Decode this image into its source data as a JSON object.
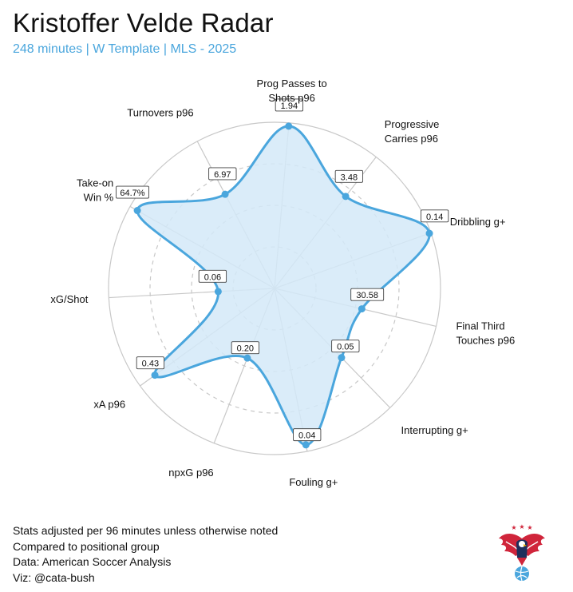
{
  "header": {
    "title": "Kristoffer Velde Radar",
    "subtitle": "248 minutes | W Template | MLS - 2025"
  },
  "footer": {
    "lines": [
      "Stats adjusted per 96 minutes unless otherwise noted",
      "Compared to positional group",
      "Data: American Soccer Analysis",
      "Viz: @cata-bush"
    ]
  },
  "colors": {
    "accent": "#4aa6dd",
    "fill": "#d4e9f8",
    "grid": "#c8c8c8",
    "logo_red": "#d0253b",
    "logo_navy": "#1f2f5c",
    "logo_blue": "#4aa6dd"
  },
  "chart_data": {
    "type": "radar",
    "title": "Kristoffer Velde Radar",
    "subtitle": "248 minutes | W Template | MLS - 2025",
    "scale": "percentile rank within positional group (0-100), estimated from radius",
    "rings": 4,
    "grid_inner_dashed": true,
    "axes": [
      {
        "label": [
          "Prog Passes to",
          "Shots p96"
        ],
        "value_label": "1.94",
        "percentile": 98
      },
      {
        "label": [
          "Progressive",
          "Carries p96"
        ],
        "value_label": "3.48",
        "percentile": 70
      },
      {
        "label": [
          "Dribbling g+"
        ],
        "value_label": "0.14",
        "percentile": 99
      },
      {
        "label": [
          "Final Third",
          "Touches p96"
        ],
        "value_label": "30.58",
        "percentile": 54
      },
      {
        "label": [
          "Interrupting g+"
        ],
        "value_label": "0.05",
        "percentile": 58
      },
      {
        "label": [
          "Fouling g+"
        ],
        "value_label": "0.04",
        "percentile": 96
      },
      {
        "label": [
          "npxG p96"
        ],
        "value_label": "0.20",
        "percentile": 45
      },
      {
        "label": [
          "xA p96"
        ],
        "value_label": "0.43",
        "percentile": 89
      },
      {
        "label": [
          "xG/Shot"
        ],
        "value_label": "0.06",
        "percentile": 34
      },
      {
        "label": [
          "Take-on",
          "Win %"
        ],
        "value_label": "64.7%",
        "percentile": 95
      },
      {
        "label": [
          "Turnovers p96"
        ],
        "value_label": "6.97",
        "percentile": 64
      }
    ]
  }
}
